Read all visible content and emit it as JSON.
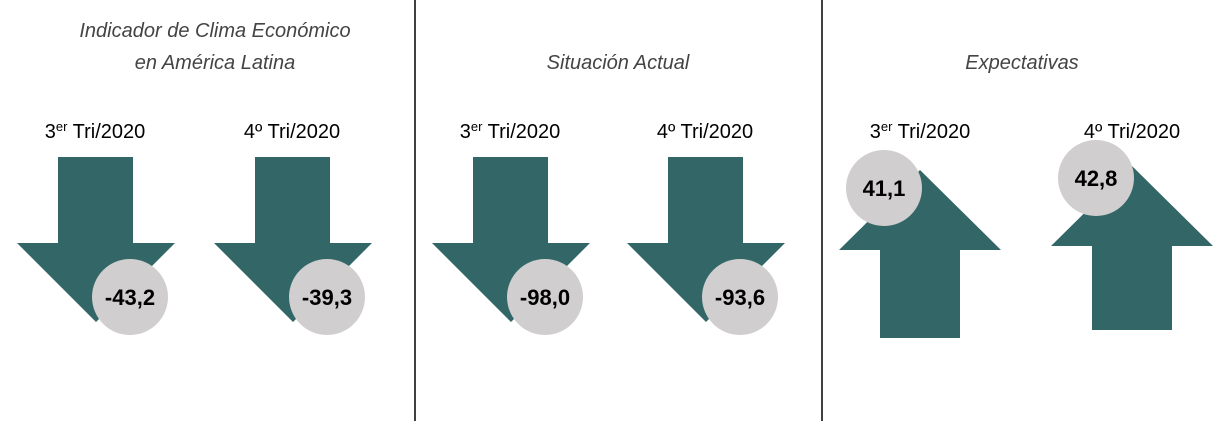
{
  "panels": [
    {
      "title": [
        "Indicador de Clima Económico",
        "en América Latina"
      ],
      "direction": "down",
      "items": [
        {
          "period": [
            "3",
            "er",
            " Tri/2020"
          ],
          "value": "-43,2"
        },
        {
          "period": [
            "4º Tri/2020"
          ],
          "value": "-39,3"
        }
      ]
    },
    {
      "title": [
        "Situación Actual"
      ],
      "direction": "down",
      "items": [
        {
          "period": [
            "3",
            "er",
            " Tri/2020"
          ],
          "value": "-98,0"
        },
        {
          "period": [
            "4º Tri/2020"
          ],
          "value": "-93,6"
        }
      ]
    },
    {
      "title": [
        "Expectativas"
      ],
      "direction": "up",
      "items": [
        {
          "period": [
            "3",
            "er",
            " Tri/2020"
          ],
          "value": "41,1"
        },
        {
          "period": [
            "4º Tri/2020"
          ],
          "value": "42,8"
        }
      ]
    }
  ],
  "arrow_color": "#336666",
  "circle_color": "#d0cece"
}
